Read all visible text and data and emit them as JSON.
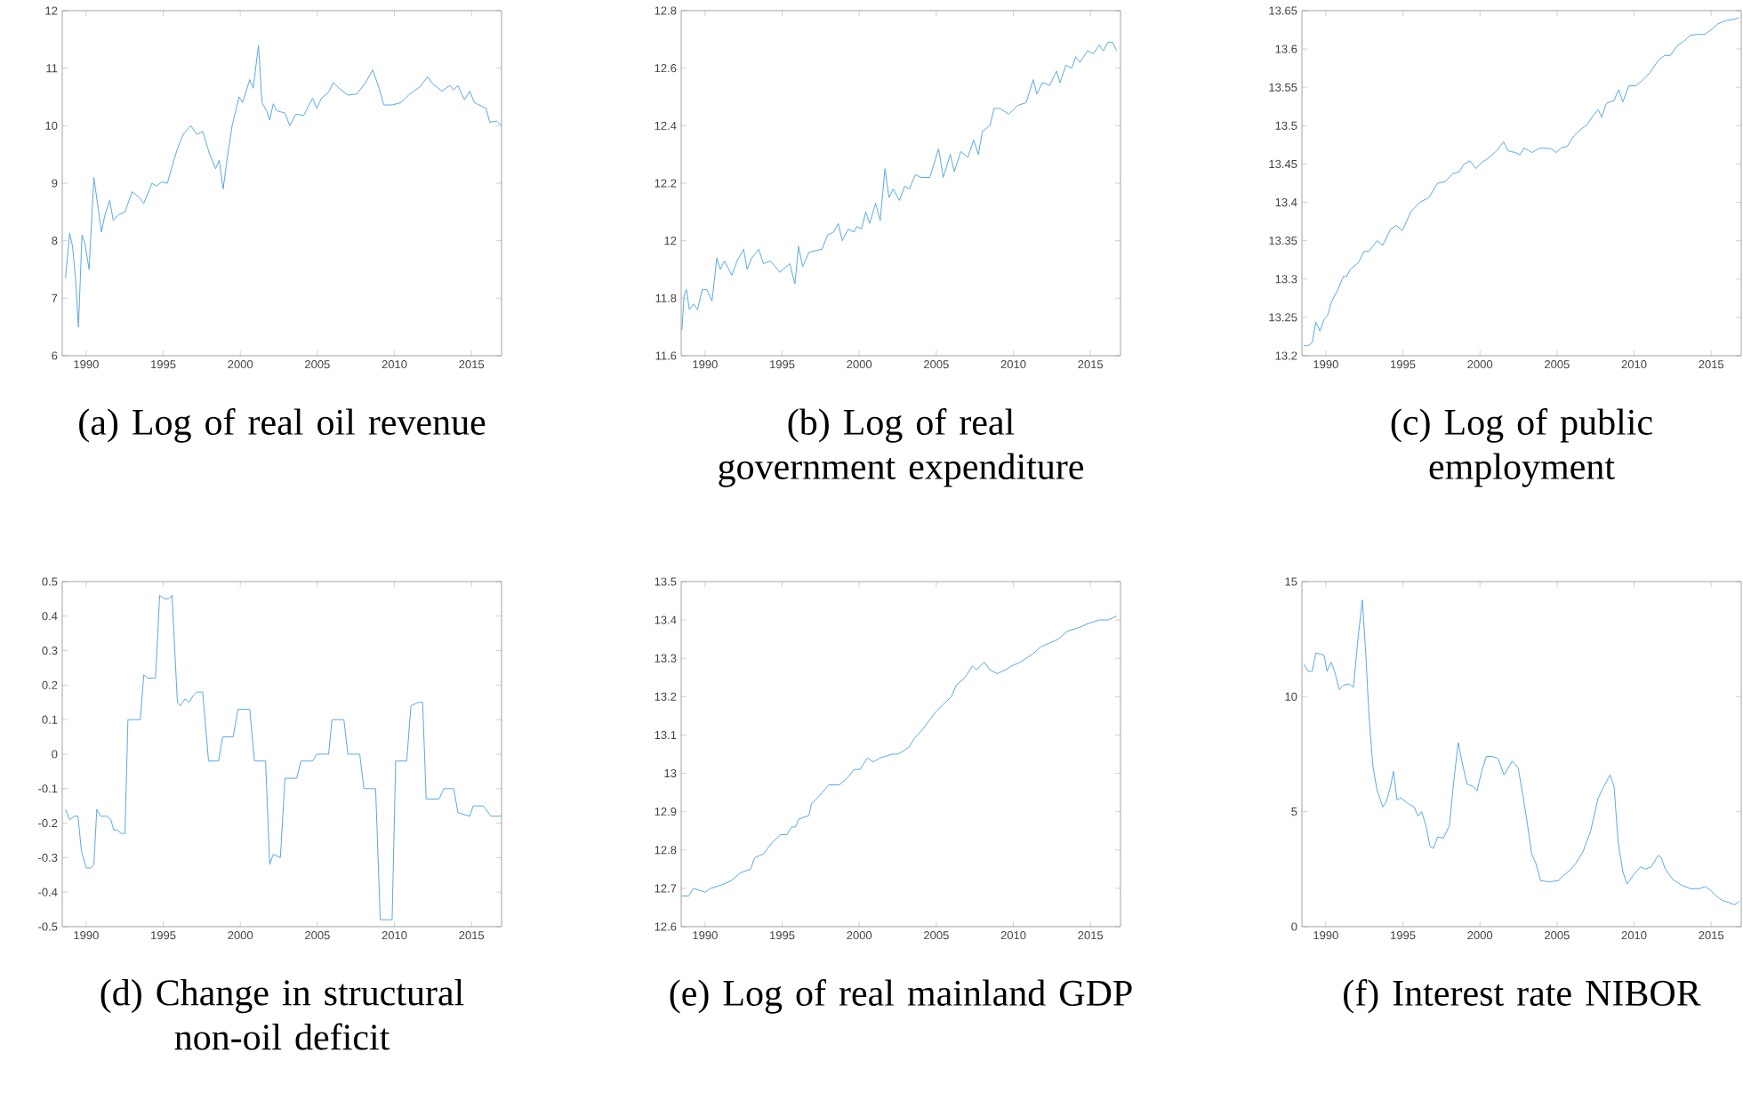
{
  "chart_data": [
    {
      "type": "line",
      "title": "(a) Log of real oil revenue",
      "xlim": [
        1988.45,
        2016.95
      ],
      "ylim": [
        6,
        12
      ],
      "xticks": [
        1990,
        1995,
        2000,
        2005,
        2010,
        2015
      ],
      "yticks": [
        6,
        7,
        8,
        9,
        10,
        11,
        12
      ],
      "x": [
        1988.66,
        1988.93,
        1989.12,
        1989.31,
        1989.5,
        1989.73,
        1989.92,
        1990.19,
        1990.5,
        1990.76,
        1990.99,
        1991.22,
        1991.53,
        1991.76,
        1992.1,
        1992.52,
        1992.98,
        1993.36,
        1993.74,
        1994.27,
        1994.58,
        1994.89,
        1995.27,
        1995.53,
        1995.92,
        1996.3,
        1996.79,
        1997.18,
        1997.56,
        1998.02,
        1998.4,
        1998.63,
        1998.89,
        1999.16,
        1999.47,
        1999.92,
        2000.15,
        2000.61,
        2000.84,
        2001.18,
        2001.41,
        2001.72,
        2001.91,
        2002.14,
        2002.37,
        2002.9,
        2003.21,
        2003.59,
        2004.12,
        2004.69,
        2004.96,
        2005.27,
        2005.73,
        2006.03,
        2006.41,
        2006.98,
        2007.56,
        2008.13,
        2008.59,
        2009.01,
        2009.31,
        2009.85,
        2010.42,
        2010.99,
        2011.68,
        2012.14,
        2012.52,
        2013.09,
        2013.59,
        2013.85,
        2014.12,
        2014.54,
        2014.89,
        2015.19,
        2015.95,
        2016.18,
        2016.64,
        2016.95
      ],
      "series": [
        {
          "color": "#5aa9e2",
          "values": [
            7.35,
            8.13,
            7.9,
            7.35,
            6.5,
            8.1,
            7.95,
            7.5,
            9.1,
            8.6,
            8.15,
            8.45,
            8.7,
            8.35,
            8.45,
            8.5,
            8.85,
            8.77,
            8.65,
            9.0,
            8.95,
            9.02,
            9.0,
            9.25,
            9.6,
            9.85,
            10.0,
            9.85,
            9.9,
            9.5,
            9.25,
            9.4,
            8.9,
            9.45,
            10.0,
            10.5,
            10.4,
            10.8,
            10.65,
            11.4,
            10.4,
            10.25,
            10.1,
            10.38,
            10.26,
            10.22,
            10.0,
            10.2,
            10.18,
            10.48,
            10.3,
            10.48,
            10.58,
            10.75,
            10.65,
            10.53,
            10.55,
            10.75,
            10.97,
            10.65,
            10.36,
            10.36,
            10.4,
            10.55,
            10.68,
            10.85,
            10.72,
            10.6,
            10.7,
            10.62,
            10.7,
            10.45,
            10.6,
            10.4,
            10.3,
            10.06,
            10.08,
            10.0
          ]
        }
      ]
    },
    {
      "type": "line",
      "title": "(b) Log of real government expenditure",
      "xlim": [
        1988.45,
        2016.95
      ],
      "ylim": [
        11.6,
        12.8
      ],
      "xticks": [
        1990,
        1995,
        2000,
        2005,
        2010,
        2015
      ],
      "yticks": [
        11.6,
        11.8,
        12,
        12.2,
        12.4,
        12.6,
        12.8
      ],
      "x": [
        1988.5,
        1988.64,
        1988.79,
        1988.98,
        1989.24,
        1989.51,
        1989.81,
        1990.11,
        1990.45,
        1990.76,
        1990.98,
        1991.25,
        1991.74,
        1992.08,
        1992.5,
        1992.73,
        1993.03,
        1993.48,
        1993.79,
        1994.24,
        1994.85,
        1995.49,
        1995.83,
        1996.06,
        1996.33,
        1996.74,
        1997.58,
        1997.95,
        1998.33,
        1998.64,
        1998.9,
        1999.28,
        1999.66,
        1999.85,
        2000.15,
        2000.42,
        2000.68,
        2001.06,
        2001.36,
        2001.67,
        2001.93,
        2002.2,
        2002.61,
        2002.95,
        2003.26,
        2003.64,
        2004.02,
        2004.58,
        2005.15,
        2005.45,
        2005.91,
        2006.17,
        2006.59,
        2007.05,
        2007.42,
        2007.73,
        2007.99,
        2008.48,
        2008.75,
        2009.13,
        2009.7,
        2010.27,
        2010.83,
        2011.29,
        2011.52,
        2011.89,
        2012.35,
        2012.8,
        2013.03,
        2013.41,
        2013.79,
        2014.05,
        2014.32,
        2014.81,
        2015.19,
        2015.57,
        2015.83,
        2016.14,
        2016.44,
        2016.7
      ],
      "series": [
        {
          "color": "#5aa9e2",
          "values": [
            11.69,
            11.81,
            11.83,
            11.76,
            11.78,
            11.76,
            11.83,
            11.83,
            11.79,
            11.94,
            11.9,
            11.93,
            11.88,
            11.93,
            11.97,
            11.9,
            11.94,
            11.97,
            11.92,
            11.93,
            11.89,
            11.92,
            11.85,
            11.98,
            11.91,
            11.96,
            11.97,
            12.02,
            12.03,
            12.06,
            12.0,
            12.04,
            12.03,
            12.05,
            12.04,
            12.1,
            12.06,
            12.13,
            12.07,
            12.25,
            12.15,
            12.18,
            12.14,
            12.19,
            12.18,
            12.23,
            12.22,
            12.22,
            12.32,
            12.22,
            12.3,
            12.24,
            12.31,
            12.29,
            12.35,
            12.3,
            12.38,
            12.4,
            12.46,
            12.46,
            12.44,
            12.47,
            12.48,
            12.56,
            12.51,
            12.55,
            12.54,
            12.59,
            12.55,
            12.61,
            12.6,
            12.64,
            12.62,
            12.66,
            12.65,
            12.68,
            12.66,
            12.69,
            12.69,
            12.66
          ]
        }
      ]
    },
    {
      "type": "line",
      "title": "(c) Log of public employment",
      "xlim": [
        1988.45,
        2016.95
      ],
      "ylim": [
        13.2,
        13.65
      ],
      "xticks": [
        1990,
        1995,
        2000,
        2005,
        2010,
        2015
      ],
      "yticks": [
        13.2,
        13.25,
        13.3,
        13.35,
        13.4,
        13.45,
        13.5,
        13.55,
        13.6,
        13.65
      ],
      "x": [
        1988.55,
        1988.85,
        1989.12,
        1989.35,
        1989.62,
        1989.9,
        1990.1,
        1990.38,
        1990.76,
        1991.15,
        1991.34,
        1991.6,
        1992.1,
        1992.48,
        1992.8,
        1993.32,
        1993.7,
        1994.2,
        1994.58,
        1994.96,
        1995.53,
        1996.1,
        1996.68,
        1997.25,
        1997.75,
        1998.2,
        1998.66,
        1998.97,
        1999.35,
        1999.73,
        2000.11,
        2000.5,
        2001.07,
        2001.53,
        2001.83,
        2002.29,
        2002.6,
        2002.86,
        2003.36,
        2003.93,
        2004.62,
        2004.96,
        2005.27,
        2005.65,
        2006.15,
        2006.6,
        2006.98,
        2007.37,
        2007.67,
        2007.9,
        2008.2,
        2008.7,
        2009.0,
        2009.27,
        2009.66,
        2010.11,
        2010.6,
        2011.1,
        2011.56,
        2012.0,
        2012.33,
        2012.79,
        2013.28,
        2013.66,
        2014.16,
        2014.6,
        2015.0,
        2015.45,
        2015.95,
        2016.5,
        2016.8
      ],
      "series": [
        {
          "color": "#5aa9e2",
          "values": [
            13.213,
            13.213,
            13.217,
            13.244,
            13.232,
            13.248,
            13.252,
            13.271,
            13.285,
            13.304,
            13.303,
            13.313,
            13.321,
            13.336,
            13.336,
            13.35,
            13.344,
            13.365,
            13.37,
            13.363,
            13.388,
            13.4,
            13.406,
            13.425,
            13.427,
            13.437,
            13.44,
            13.45,
            13.454,
            13.444,
            13.452,
            13.457,
            13.467,
            13.479,
            13.467,
            13.465,
            13.462,
            13.471,
            13.465,
            13.471,
            13.47,
            13.465,
            13.471,
            13.473,
            13.488,
            13.496,
            13.502,
            13.514,
            13.521,
            13.511,
            13.529,
            13.533,
            13.547,
            13.531,
            13.552,
            13.552,
            13.56,
            13.571,
            13.585,
            13.592,
            13.591,
            13.604,
            13.611,
            13.618,
            13.619,
            13.619,
            13.625,
            13.633,
            13.637,
            13.639,
            13.641
          ]
        }
      ]
    },
    {
      "type": "line",
      "title": "(d) Change in structural non-oil deficit",
      "xlim": [
        1988.45,
        2016.95
      ],
      "ylim": [
        -0.5,
        0.5
      ],
      "xticks": [
        1990,
        1995,
        2000,
        2005,
        2010,
        2015
      ],
      "yticks": [
        -0.5,
        -0.4,
        -0.3,
        -0.2,
        -0.1,
        0,
        0.1,
        0.2,
        0.3,
        0.4,
        0.5
      ],
      "x": [
        1988.66,
        1988.93,
        1989.24,
        1989.47,
        1989.69,
        1990,
        1990.31,
        1990.5,
        1990.69,
        1990.95,
        1991.34,
        1991.6,
        1991.79,
        1992.02,
        1992.29,
        1992.52,
        1992.71,
        1993.24,
        1993.51,
        1993.74,
        1994.01,
        1994.5,
        1994.77,
        1995.08,
        1995.34,
        1995.57,
        1995.92,
        1996.11,
        1996.41,
        1996.68,
        1996.95,
        1997.18,
        1997.56,
        1997.94,
        1998.59,
        1998.85,
        1999.54,
        1999.85,
        2000.31,
        2000.61,
        2000.92,
        2001.64,
        2001.91,
        2002.14,
        2002.6,
        2002.9,
        2003.66,
        2003.93,
        2004.69,
        2004.96,
        2005.73,
        2005.95,
        2006.41,
        2006.72,
        2006.98,
        2007.75,
        2008.02,
        2008.78,
        2009.08,
        2009.85,
        2010.08,
        2010.8,
        2011.07,
        2011.56,
        2011.83,
        2012.06,
        2012.9,
        2013.21,
        2013.85,
        2014.12,
        2014.89,
        2015.11,
        2015.76,
        2016.26,
        2016.95
      ],
      "series": [
        {
          "color": "#5aa9e2",
          "values": [
            -0.16,
            -0.19,
            -0.18,
            -0.18,
            -0.28,
            -0.33,
            -0.33,
            -0.32,
            -0.16,
            -0.18,
            -0.18,
            -0.19,
            -0.22,
            -0.22,
            -0.23,
            -0.23,
            0.1,
            0.1,
            0.1,
            0.23,
            0.22,
            0.22,
            0.46,
            0.45,
            0.45,
            0.46,
            0.15,
            0.14,
            0.16,
            0.15,
            0.17,
            0.18,
            0.18,
            -0.02,
            -0.02,
            0.05,
            0.05,
            0.13,
            0.13,
            0.13,
            -0.02,
            -0.02,
            -0.32,
            -0.29,
            -0.3,
            -0.07,
            -0.07,
            -0.02,
            -0.02,
            0,
            0,
            0.1,
            0.1,
            0.1,
            0,
            0,
            -0.1,
            -0.1,
            -0.48,
            -0.48,
            -0.02,
            -0.02,
            0.14,
            0.15,
            0.15,
            -0.13,
            -0.13,
            -0.1,
            -0.1,
            -0.17,
            -0.18,
            -0.15,
            -0.15,
            -0.18,
            -0.18
          ]
        }
      ]
    },
    {
      "type": "line",
      "title": "(e) Log of real mainland GDP",
      "xlim": [
        1988.45,
        2016.95
      ],
      "ylim": [
        12.6,
        13.5
      ],
      "xticks": [
        1990,
        1995,
        2000,
        2005,
        2010,
        2015
      ],
      "yticks": [
        12.6,
        12.7,
        12.8,
        12.9,
        13,
        13.1,
        13.2,
        13.3,
        13.4,
        13.5
      ],
      "x": [
        1988.48,
        1988.94,
        1989.24,
        1990.0,
        1990.38,
        1991.14,
        1991.7,
        1992.27,
        1992.95,
        1993.22,
        1993.79,
        1994.36,
        1994.92,
        1995.3,
        1995.61,
        1995.87,
        1996.06,
        1996.74,
        1996.89,
        1997.39,
        1998.03,
        1998.71,
        1999.28,
        1999.66,
        2000.04,
        2000.53,
        2000.91,
        2001.36,
        2002.12,
        2002.5,
        2002.95,
        2003.26,
        2003.56,
        2004.02,
        2004.58,
        2004.96,
        2005.45,
        2005.98,
        2006.29,
        2006.86,
        2007.35,
        2007.61,
        2008.11,
        2008.48,
        2008.94,
        2009.51,
        2009.89,
        2010.45,
        2011.21,
        2011.78,
        2012.35,
        2012.92,
        2013.48,
        2014.24,
        2014.81,
        2015.57,
        2016.14,
        2016.7
      ],
      "series": [
        {
          "color": "#5aa9e2",
          "values": [
            12.68,
            12.68,
            12.7,
            12.69,
            12.7,
            12.71,
            12.72,
            12.74,
            12.75,
            12.78,
            12.79,
            12.82,
            12.84,
            12.84,
            12.86,
            12.86,
            12.88,
            12.89,
            12.92,
            12.94,
            12.97,
            12.97,
            12.99,
            13.01,
            13.01,
            13.04,
            13.03,
            13.04,
            13.05,
            13.05,
            13.06,
            13.07,
            13.09,
            13.11,
            13.14,
            13.16,
            13.18,
            13.2,
            13.23,
            13.25,
            13.28,
            13.27,
            13.29,
            13.27,
            13.26,
            13.27,
            13.28,
            13.29,
            13.31,
            13.33,
            13.34,
            13.35,
            13.37,
            13.38,
            13.39,
            13.4,
            13.4,
            13.41
          ]
        }
      ]
    },
    {
      "type": "line",
      "title": "(f) Interest rate NIBOR",
      "xlim": [
        1988.45,
        2016.95
      ],
      "ylim": [
        0,
        15
      ],
      "xticks": [
        1990,
        1995,
        2000,
        2005,
        2010,
        2015
      ],
      "yticks": [
        0,
        5,
        10,
        15
      ],
      "x": [
        1988.59,
        1988.85,
        1989.12,
        1989.35,
        1989.62,
        1989.89,
        1990.08,
        1990.34,
        1990.57,
        1990.88,
        1991.15,
        1991.53,
        1991.79,
        1992.1,
        1992.37,
        1992.6,
        1992.79,
        1993.05,
        1993.32,
        1993.7,
        1993.93,
        1994.2,
        1994.39,
        1994.62,
        1994.85,
        1995.34,
        1995.73,
        1995.99,
        1996.22,
        1996.49,
        1996.76,
        1996.98,
        1997.25,
        1997.63,
        1998.02,
        1998.28,
        1998.59,
        1998.89,
        1999.16,
        1999.54,
        1999.81,
        2000.11,
        2000.42,
        2000.8,
        2001.18,
        2001.56,
        2001.83,
        2002.1,
        2002.48,
        2002.79,
        2003.09,
        2003.36,
        2003.63,
        2003.93,
        2004.5,
        2005.08,
        2005.46,
        2005.84,
        2006.22,
        2006.68,
        2007.18,
        2007.67,
        2008.05,
        2008.44,
        2008.7,
        2008.97,
        2009.27,
        2009.54,
        2009.96,
        2010.42,
        2010.73,
        2011.11,
        2011.56,
        2011.76,
        2012.02,
        2012.52,
        2013.09,
        2013.66,
        2014.24,
        2014.62,
        2015.0,
        2015.31,
        2015.69,
        2016.15,
        2016.53,
        2016.83
      ],
      "series": [
        {
          "color": "#5aa9e2",
          "values": [
            11.4,
            11.1,
            11.1,
            11.9,
            11.85,
            11.8,
            11.1,
            11.5,
            11.1,
            10.3,
            10.5,
            10.55,
            10.4,
            12.6,
            14.2,
            11.8,
            9.3,
            7.0,
            5.95,
            5.2,
            5.45,
            6.1,
            6.75,
            5.5,
            5.6,
            5.35,
            5.2,
            4.8,
            5.0,
            4.4,
            3.5,
            3.4,
            3.9,
            3.85,
            4.4,
            6.2,
            8.0,
            7.0,
            6.2,
            6.1,
            5.9,
            6.75,
            7.4,
            7.4,
            7.3,
            6.6,
            6.9,
            7.2,
            6.9,
            5.7,
            4.4,
            3.15,
            2.75,
            2.0,
            1.95,
            2.0,
            2.25,
            2.45,
            2.75,
            3.25,
            4.15,
            5.6,
            6.1,
            6.6,
            6.1,
            3.65,
            2.4,
            1.85,
            2.25,
            2.6,
            2.5,
            2.6,
            3.1,
            3.0,
            2.5,
            2.05,
            1.8,
            1.65,
            1.65,
            1.75,
            1.55,
            1.35,
            1.15,
            1.05,
            0.95,
            1.1
          ]
        }
      ]
    }
  ]
}
